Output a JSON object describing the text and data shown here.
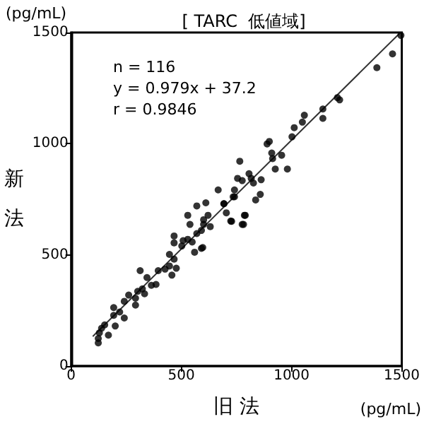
{
  "chart_data": {
    "type": "scatter",
    "title": "[ TARC  低値域]",
    "xlabel": "旧 法",
    "ylabel": "新法",
    "annotations": [
      "(pg/mL)",
      "(pg/mL)",
      "n = 116",
      "y = 0.979x + 37.2",
      "r = 0.9846"
    ],
    "xlim": [
      0,
      1500
    ],
    "ylim": [
      0,
      1500
    ],
    "xticks": [
      0,
      500,
      1000,
      1500
    ],
    "yticks": [
      0,
      500,
      1000,
      1500
    ],
    "grid": false,
    "marker": "circle",
    "series": [
      {
        "color": "#000000",
        "x": [
          123,
          123,
          128,
          138,
          152,
          169,
          200,
          193,
          220,
          241,
          193,
          241,
          261,
          292,
          292,
          302,
          323,
          333,
          313,
          344,
          364,
          385,
          395,
          426,
          446,
          457,
          477,
          446,
          467,
          467,
          467,
          502,
          508,
          529,
          549,
          560,
          591,
          570,
          591,
          529,
          539,
          570,
          611,
          601,
          601,
          631,
          621,
          693,
          704,
          735,
          724,
          776,
          786,
          597,
          667,
          693,
          728,
          741,
          741,
          755,
          765,
          776,
          782,
          790,
          807,
          817,
          827,
          837,
          858,
          862,
          889,
          899,
          910,
          914,
          926,
          955,
          981,
          1002,
          1012,
          1049,
          1058,
          1142,
          1142,
          1208,
          1218,
          1458,
          1387,
          1496
        ],
        "values": [
          104,
          124,
          149,
          170,
          185,
          139,
          180,
          228,
          243,
          216,
          263,
          291,
          319,
          305,
          274,
          336,
          347,
          325,
          429,
          398,
          363,
          367,
          429,
          436,
          450,
          409,
          440,
          502,
          481,
          554,
          585,
          540,
          564,
          570,
          558,
          512,
          529,
          596,
          610,
          678,
          637,
          720,
          734,
          658,
          637,
          627,
          678,
          730,
          689,
          761,
          652,
          637,
          678,
          533,
          792,
          730,
          651,
          761,
          792,
          844,
          921,
          834,
          637,
          678,
          865,
          844,
          823,
          747,
          772,
          838,
          999,
          1010,
          958,
          933,
          886,
          948,
          886,
          1031,
          1072,
          1097,
          1128,
          1156,
          1114,
          1207,
          1197,
          1404,
          1342,
          1487
        ]
      },
      {
        "type": "line",
        "color": "#333333",
        "marker": "none",
        "x": [
          100,
          1494
        ],
        "values": [
          135,
          1500
        ]
      }
    ]
  }
}
